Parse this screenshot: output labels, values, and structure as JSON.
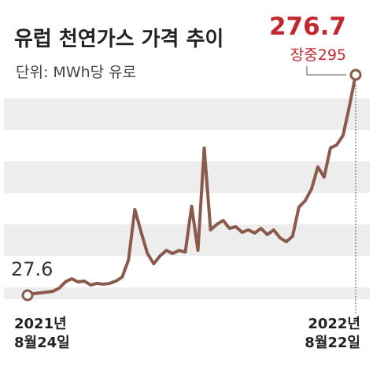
{
  "chart_data": {
    "type": "line",
    "title": "유럽 천연가스 가격 추이",
    "subtitle": "단위: MWh당 유로",
    "annotations": [
      "장중295"
    ],
    "categories": [
      "2021년\n8월24일",
      null,
      null,
      null,
      null,
      null,
      null,
      null,
      null,
      null,
      null,
      null,
      null,
      null,
      null,
      null,
      null,
      null,
      null,
      null,
      null,
      null,
      null,
      null,
      null,
      null,
      null,
      null,
      null,
      null,
      null,
      null,
      null,
      null,
      null,
      null,
      null,
      null,
      null,
      null,
      null,
      null,
      null,
      null,
      null,
      null,
      null,
      null,
      null,
      null,
      null,
      null,
      "2022년\n8월22일"
    ],
    "series": [
      {
        "name": null,
        "color": "#8a5a4c",
        "values": [
          27.6,
          29.4,
          30.3,
          31.2,
          32.0,
          35.6,
          42.7,
          46.3,
          42.7,
          43.6,
          39.2,
          41.0,
          40.1,
          41.0,
          43.6,
          48.1,
          67.6,
          124.6,
          98.8,
          74.8,
          63.2,
          72.1,
          78.3,
          74.8,
          78.3,
          76.5,
          128.1,
          78.3,
          194.0,
          101.4,
          107.7,
          112.1,
          103.2,
          105.0,
          98.8,
          101.4,
          97.9,
          103.2,
          96.1,
          101.4,
          92.5,
          88.1,
          94.3,
          127.2,
          134.4,
          147.7,
          172.6,
          161.1,
          194.0,
          197.5,
          208.2,
          241.1,
          276.7
        ],
        "value_labels": [
          "27.6",
          null,
          null,
          null,
          null,
          null,
          null,
          null,
          null,
          null,
          null,
          null,
          null,
          null,
          null,
          null,
          null,
          null,
          null,
          null,
          null,
          null,
          null,
          null,
          null,
          null,
          null,
          null,
          null,
          null,
          null,
          null,
          null,
          null,
          null,
          null,
          null,
          null,
          null,
          null,
          null,
          null,
          null,
          null,
          null,
          null,
          null,
          null,
          null,
          null,
          null,
          null,
          "276.7"
        ]
      }
    ]
  }
}
